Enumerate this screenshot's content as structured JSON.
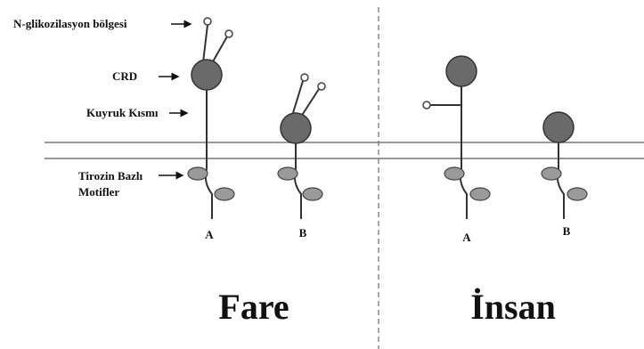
{
  "annotations": [
    "N-glikozilasyon bölgesi",
    "CRD",
    "Kuyruk Kısmı",
    "Tirozin Bazlı",
    "Motifler"
  ],
  "panels": [
    {
      "title": "Fare",
      "receptors": [
        "A",
        "B"
      ]
    },
    {
      "title": "İnsan",
      "receptors": [
        "A",
        "B"
      ]
    }
  ]
}
